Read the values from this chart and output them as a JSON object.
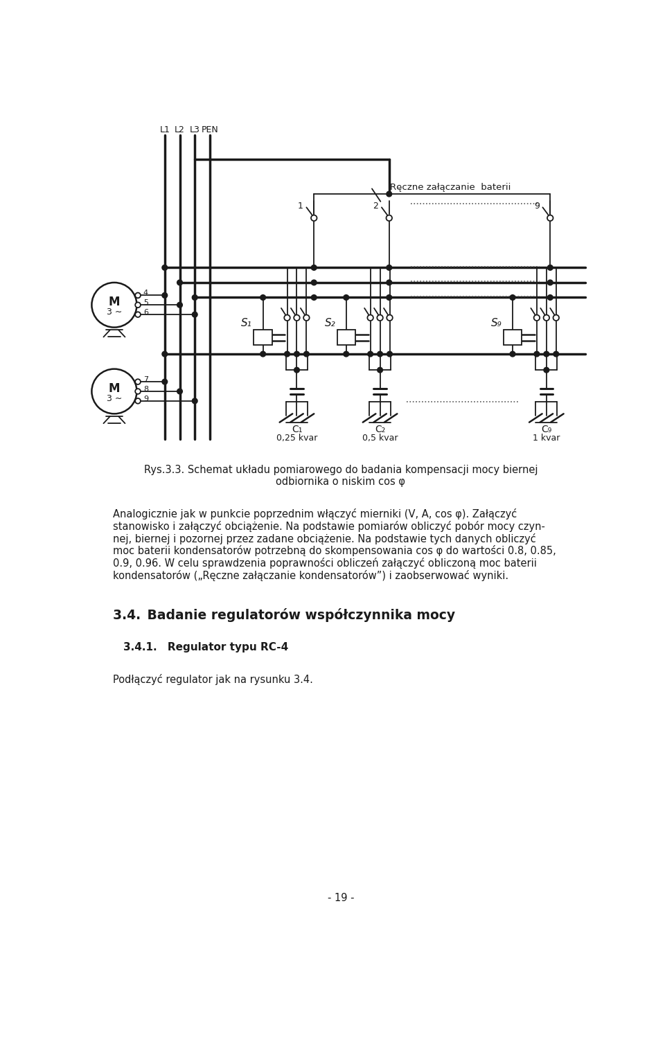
{
  "bg_color": "#ffffff",
  "lc": "#1a1a1a",
  "tc": "#1a1a1a",
  "page_width": 9.6,
  "page_height": 15.0,
  "label_L1": "L1",
  "label_L2": "L2",
  "label_L3": "L3",
  "label_PEN": "PEN",
  "label_reczne": "Ręczne załączanie  baterii",
  "label_S1": "S₁",
  "label_S2": "S₂",
  "label_S9": "S₉",
  "label_C1": "C₁",
  "label_C2": "C₂",
  "label_C9": "C₉",
  "label_C1_val": "0,25 kvar",
  "label_C2_val": "0,5 kvar",
  "label_C9_val": "1 kvar",
  "switch_nums": [
    "1",
    "2",
    "9"
  ],
  "caption_line1": "Rys.3.3. Schemat układu pomiarowego do badania kompensacji mocy biernej",
  "caption_line2": "odbiornika o niskim cos φ",
  "para_lines": [
    "Analogicznie jak w punkcie poprzednim włączyć mierniki (V, A, cos φ). Załączyć",
    "stanowisko i załączyć obciążenie. Na podstawie pomiarów obliczyć pobór mocy czyn-",
    "nej, biernej i pozornej przez zadane obciążenie. Na podstawie tych danych obliczyć",
    "moc baterii kondensatorów potrzebną do skompensowania cos φ do wartości 0.8, 0.85,",
    "0.9, 0.96. W celu sprawdzenia poprawności obliczeń załączyć obliczoną moc baterii",
    "kondensatorów („Ręczne załączanie kondensatorów”) i zaobserwować wyniki."
  ],
  "section_title": "3.4. Badanie regulatorów współczynnika mocy",
  "subsection_title": "3.4.1. Regulator typu RC-4",
  "last_para": "Podłączyć regulator jak na rysunku 3.4.",
  "page_number": "- 19 -"
}
